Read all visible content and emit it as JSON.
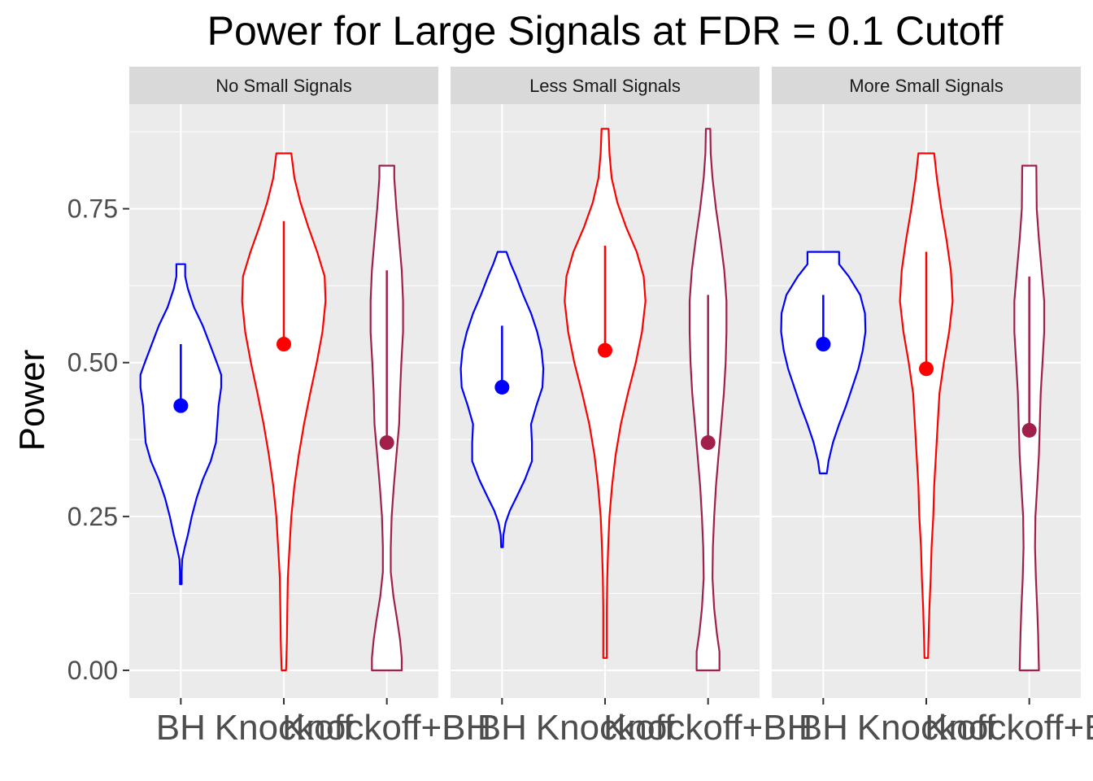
{
  "chart_data": {
    "type": "violin",
    "title": "Power for Large Signals at FDR = 0.1 Cutoff",
    "ylabel": "Power",
    "xlabel": "",
    "ylim": [
      -0.045,
      0.92
    ],
    "yticks": [
      0.0,
      0.25,
      0.5,
      0.75
    ],
    "ytick_labels": [
      "0.00",
      "0.25",
      "0.50",
      "0.75"
    ],
    "grid": true,
    "categories": [
      "BH",
      "Knockoff",
      "Knockoff+BH"
    ],
    "colors": {
      "BH": "#0000ff",
      "Knockoff": "#ff0000",
      "Knockoff+BH": "#a0204a"
    },
    "panels": [
      {
        "name": "No Small Signals",
        "violins": [
          {
            "category": "BH",
            "min": 0.14,
            "max": 0.66,
            "median": 0.43,
            "q3": 0.53,
            "profile": [
              [
                0.14,
                0.02
              ],
              [
                0.16,
                0.02
              ],
              [
                0.18,
                0.03
              ],
              [
                0.2,
                0.09
              ],
              [
                0.22,
                0.16
              ],
              [
                0.25,
                0.25
              ],
              [
                0.28,
                0.36
              ],
              [
                0.31,
                0.5
              ],
              [
                0.34,
                0.68
              ],
              [
                0.37,
                0.8
              ],
              [
                0.4,
                0.83
              ],
              [
                0.43,
                0.86
              ],
              [
                0.46,
                0.92
              ],
              [
                0.48,
                0.92
              ],
              [
                0.5,
                0.82
              ],
              [
                0.53,
                0.66
              ],
              [
                0.56,
                0.5
              ],
              [
                0.59,
                0.3
              ],
              [
                0.62,
                0.16
              ],
              [
                0.64,
                0.1
              ],
              [
                0.66,
                0.1
              ]
            ]
          },
          {
            "category": "Knockoff",
            "min": 0.0,
            "max": 0.84,
            "median": 0.53,
            "q3": 0.73,
            "profile": [
              [
                0.0,
                0.05
              ],
              [
                0.02,
                0.06
              ],
              [
                0.05,
                0.07
              ],
              [
                0.1,
                0.08
              ],
              [
                0.15,
                0.09
              ],
              [
                0.2,
                0.13
              ],
              [
                0.25,
                0.17
              ],
              [
                0.3,
                0.24
              ],
              [
                0.35,
                0.34
              ],
              [
                0.4,
                0.46
              ],
              [
                0.45,
                0.6
              ],
              [
                0.5,
                0.75
              ],
              [
                0.55,
                0.88
              ],
              [
                0.6,
                0.95
              ],
              [
                0.64,
                0.93
              ],
              [
                0.68,
                0.76
              ],
              [
                0.72,
                0.56
              ],
              [
                0.76,
                0.38
              ],
              [
                0.8,
                0.24
              ],
              [
                0.84,
                0.17
              ]
            ]
          },
          {
            "category": "Knockoff+BH",
            "min": 0.0,
            "max": 0.82,
            "median": 0.37,
            "q3": 0.65,
            "profile": [
              [
                0.0,
                0.34
              ],
              [
                0.02,
                0.34
              ],
              [
                0.05,
                0.3
              ],
              [
                0.08,
                0.24
              ],
              [
                0.12,
                0.15
              ],
              [
                0.16,
                0.09
              ],
              [
                0.2,
                0.09
              ],
              [
                0.25,
                0.11
              ],
              [
                0.3,
                0.16
              ],
              [
                0.35,
                0.22
              ],
              [
                0.4,
                0.28
              ],
              [
                0.45,
                0.3
              ],
              [
                0.5,
                0.33
              ],
              [
                0.55,
                0.37
              ],
              [
                0.6,
                0.37
              ],
              [
                0.65,
                0.34
              ],
              [
                0.7,
                0.28
              ],
              [
                0.75,
                0.22
              ],
              [
                0.8,
                0.17
              ],
              [
                0.82,
                0.17
              ]
            ]
          }
        ]
      },
      {
        "name": "Less Small Signals",
        "violins": [
          {
            "category": "BH",
            "min": 0.2,
            "max": 0.68,
            "median": 0.46,
            "q3": 0.56,
            "profile": [
              [
                0.2,
                0.02
              ],
              [
                0.22,
                0.03
              ],
              [
                0.24,
                0.08
              ],
              [
                0.26,
                0.18
              ],
              [
                0.28,
                0.32
              ],
              [
                0.31,
                0.52
              ],
              [
                0.34,
                0.68
              ],
              [
                0.37,
                0.68
              ],
              [
                0.4,
                0.66
              ],
              [
                0.43,
                0.78
              ],
              [
                0.46,
                0.92
              ],
              [
                0.49,
                0.94
              ],
              [
                0.52,
                0.9
              ],
              [
                0.55,
                0.8
              ],
              [
                0.58,
                0.66
              ],
              [
                0.61,
                0.48
              ],
              [
                0.64,
                0.32
              ],
              [
                0.66,
                0.2
              ],
              [
                0.68,
                0.1
              ]
            ]
          },
          {
            "category": "Knockoff",
            "min": 0.02,
            "max": 0.88,
            "median": 0.52,
            "q3": 0.69,
            "profile": [
              [
                0.02,
                0.04
              ],
              [
                0.05,
                0.04
              ],
              [
                0.1,
                0.04
              ],
              [
                0.15,
                0.05
              ],
              [
                0.2,
                0.07
              ],
              [
                0.25,
                0.1
              ],
              [
                0.3,
                0.16
              ],
              [
                0.35,
                0.24
              ],
              [
                0.4,
                0.36
              ],
              [
                0.45,
                0.52
              ],
              [
                0.5,
                0.7
              ],
              [
                0.55,
                0.84
              ],
              [
                0.6,
                0.92
              ],
              [
                0.64,
                0.88
              ],
              [
                0.68,
                0.72
              ],
              [
                0.72,
                0.48
              ],
              [
                0.76,
                0.28
              ],
              [
                0.8,
                0.15
              ],
              [
                0.84,
                0.1
              ],
              [
                0.88,
                0.08
              ]
            ]
          },
          {
            "category": "Knockoff+BH",
            "min": 0.0,
            "max": 0.88,
            "median": 0.37,
            "q3": 0.61,
            "profile": [
              [
                0.0,
                0.26
              ],
              [
                0.03,
                0.26
              ],
              [
                0.06,
                0.2
              ],
              [
                0.1,
                0.14
              ],
              [
                0.15,
                0.1
              ],
              [
                0.2,
                0.11
              ],
              [
                0.25,
                0.14
              ],
              [
                0.3,
                0.18
              ],
              [
                0.35,
                0.24
              ],
              [
                0.4,
                0.3
              ],
              [
                0.45,
                0.36
              ],
              [
                0.5,
                0.4
              ],
              [
                0.55,
                0.42
              ],
              [
                0.6,
                0.42
              ],
              [
                0.65,
                0.37
              ],
              [
                0.7,
                0.28
              ],
              [
                0.75,
                0.18
              ],
              [
                0.8,
                0.1
              ],
              [
                0.84,
                0.06
              ],
              [
                0.88,
                0.05
              ]
            ]
          }
        ]
      },
      {
        "name": "More Small Signals",
        "violins": [
          {
            "category": "BH",
            "min": 0.32,
            "max": 0.68,
            "median": 0.53,
            "q3": 0.61,
            "profile": [
              [
                0.32,
                0.08
              ],
              [
                0.34,
                0.12
              ],
              [
                0.37,
                0.22
              ],
              [
                0.4,
                0.36
              ],
              [
                0.43,
                0.52
              ],
              [
                0.46,
                0.66
              ],
              [
                0.49,
                0.8
              ],
              [
                0.52,
                0.9
              ],
              [
                0.55,
                0.96
              ],
              [
                0.58,
                0.95
              ],
              [
                0.61,
                0.84
              ],
              [
                0.64,
                0.58
              ],
              [
                0.66,
                0.36
              ],
              [
                0.68,
                0.36
              ]
            ]
          },
          {
            "category": "Knockoff",
            "min": 0.02,
            "max": 0.84,
            "median": 0.49,
            "q3": 0.68,
            "profile": [
              [
                0.02,
                0.04
              ],
              [
                0.05,
                0.05
              ],
              [
                0.1,
                0.07
              ],
              [
                0.15,
                0.1
              ],
              [
                0.2,
                0.12
              ],
              [
                0.25,
                0.16
              ],
              [
                0.3,
                0.18
              ],
              [
                0.35,
                0.22
              ],
              [
                0.4,
                0.26
              ],
              [
                0.45,
                0.3
              ],
              [
                0.5,
                0.4
              ],
              [
                0.55,
                0.52
              ],
              [
                0.6,
                0.6
              ],
              [
                0.65,
                0.56
              ],
              [
                0.7,
                0.46
              ],
              [
                0.75,
                0.34
              ],
              [
                0.8,
                0.24
              ],
              [
                0.84,
                0.18
              ]
            ]
          },
          {
            "category": "Knockoff+BH",
            "min": 0.0,
            "max": 0.82,
            "median": 0.39,
            "q3": 0.64,
            "profile": [
              [
                0.0,
                0.22
              ],
              [
                0.03,
                0.21
              ],
              [
                0.06,
                0.2
              ],
              [
                0.1,
                0.18
              ],
              [
                0.15,
                0.15
              ],
              [
                0.2,
                0.13
              ],
              [
                0.25,
                0.14
              ],
              [
                0.3,
                0.18
              ],
              [
                0.35,
                0.22
              ],
              [
                0.4,
                0.24
              ],
              [
                0.45,
                0.26
              ],
              [
                0.5,
                0.3
              ],
              [
                0.55,
                0.34
              ],
              [
                0.6,
                0.34
              ],
              [
                0.65,
                0.28
              ],
              [
                0.7,
                0.22
              ],
              [
                0.75,
                0.17
              ],
              [
                0.82,
                0.16
              ]
            ]
          }
        ]
      }
    ]
  }
}
